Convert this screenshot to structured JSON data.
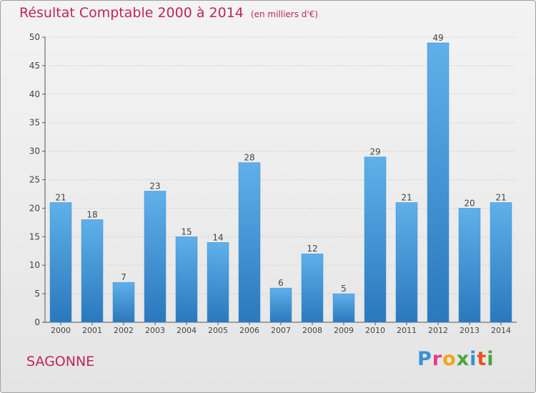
{
  "chart_data": {
    "type": "bar",
    "title": "Résultat Comptable 2000 à 2014",
    "subtitle": "(en milliers d'€)",
    "categories": [
      "2000",
      "2001",
      "2002",
      "2003",
      "2004",
      "2005",
      "2006",
      "2007",
      "2008",
      "2009",
      "2010",
      "2011",
      "2012",
      "2013",
      "2014"
    ],
    "values": [
      21,
      18,
      7,
      23,
      15,
      14,
      28,
      6,
      12,
      5,
      29,
      21,
      49,
      20,
      21
    ],
    "yticks": [
      0,
      5,
      10,
      15,
      20,
      25,
      30,
      35,
      40,
      45,
      50
    ],
    "ylim": [
      0,
      50
    ],
    "xlabel": "",
    "ylabel": "",
    "grid": true,
    "bar_color": "#4a9fdc",
    "bar_color_dark": "#2a78bd"
  },
  "place_name": "SAGONNE",
  "logo": {
    "text": "Proxiti",
    "letter_colors": [
      "#3a8fd8",
      "#e83c8a",
      "#f2a41c",
      "#46a83c",
      "#3a8fd8",
      "#e8531e",
      "#46a83c"
    ]
  },
  "colors": {
    "title": "#c0245c",
    "axis": "#555555",
    "grid": "#cfcfcf"
  }
}
